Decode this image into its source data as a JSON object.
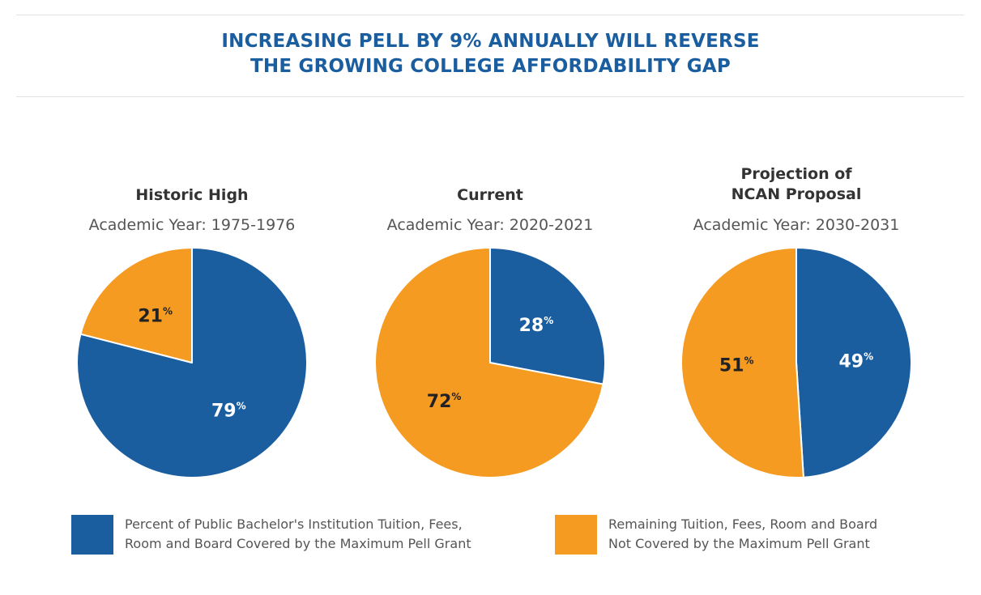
{
  "title_lines": [
    "INCREASING PELL BY 9% ANNUALLY WILL REVERSE",
    "THE GROWING COLLEGE AFFORDABILITY GAP"
  ],
  "colors": {
    "covered": "#1a5ea0",
    "remaining": "#f59b22",
    "title": "#1a5ea0"
  },
  "chart_data": [
    {
      "type": "pie",
      "title_lines": [
        "Historic High"
      ],
      "subtitle": "Academic Year: 1975-1976",
      "slices": [
        {
          "label": "79",
          "value": 79,
          "series": "covered"
        },
        {
          "label": "21",
          "value": 21,
          "series": "remaining"
        }
      ]
    },
    {
      "type": "pie",
      "title_lines": [
        "Current"
      ],
      "subtitle": "Academic Year: 2020-2021",
      "slices": [
        {
          "label": "28",
          "value": 28,
          "series": "covered"
        },
        {
          "label": "72",
          "value": 72,
          "series": "remaining"
        }
      ]
    },
    {
      "type": "pie",
      "title_lines": [
        "Projection of",
        "NCAN Proposal"
      ],
      "subtitle": "Academic Year: 2030-2031",
      "slices": [
        {
          "label": "49",
          "value": 49,
          "series": "covered"
        },
        {
          "label": "51",
          "value": 51,
          "series": "remaining"
        }
      ]
    }
  ],
  "percent_sign": "%",
  "legend": [
    {
      "series": "covered",
      "lines": [
        "Percent of Public Bachelor's Institution Tuition, Fees,",
        "Room and Board Covered by the Maximum Pell Grant"
      ]
    },
    {
      "series": "remaining",
      "lines": [
        "Remaining Tuition, Fees, Room and Board",
        "Not Covered by the Maximum Pell Grant"
      ]
    }
  ]
}
